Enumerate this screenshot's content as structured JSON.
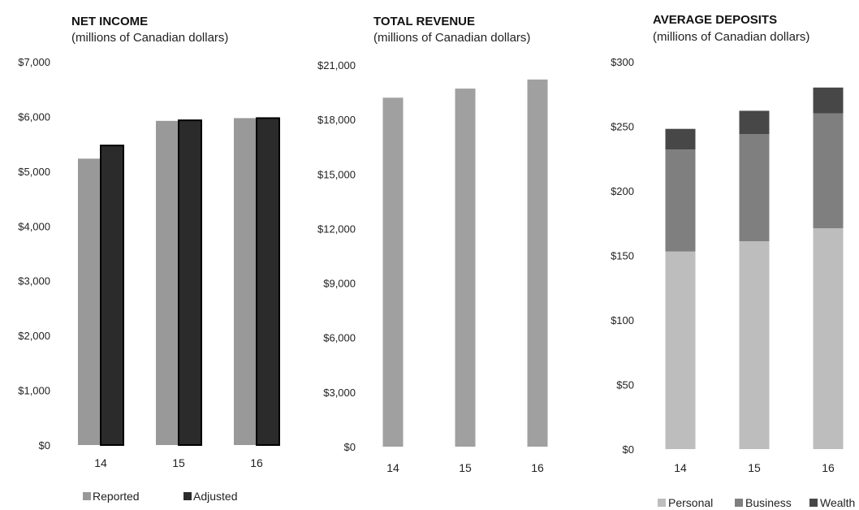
{
  "chart_data": [
    {
      "type": "bar",
      "title": "NET INCOME",
      "subtitle": "(millions of Canadian dollars)",
      "categories": [
        "14",
        "15",
        "16"
      ],
      "series": [
        {
          "name": "Reported",
          "values": [
            5230,
            5920,
            5970
          ],
          "color": "#999999"
        },
        {
          "name": "Adjusted",
          "values": [
            5470,
            5930,
            5970
          ],
          "color": "#2b2b2b"
        }
      ],
      "ylim": [
        0,
        7000
      ],
      "yticks": [
        0,
        1000,
        2000,
        3000,
        4000,
        5000,
        6000,
        7000
      ],
      "ytick_labels": [
        "$0",
        "$1,000",
        "$2,000",
        "$3,000",
        "$4,000",
        "$5,000",
        "$6,000",
        "$7,000"
      ],
      "grid": false,
      "legend": "bottom"
    },
    {
      "type": "bar",
      "title": "TOTAL REVENUE",
      "subtitle": "(millions of Canadian dollars)",
      "categories": [
        "14",
        "15",
        "16"
      ],
      "series": [
        {
          "name": "",
          "values": [
            19200,
            19700,
            20200
          ],
          "color": "#a0a0a0"
        }
      ],
      "ylim": [
        0,
        21000
      ],
      "yticks": [
        0,
        3000,
        6000,
        9000,
        12000,
        15000,
        18000,
        21000
      ],
      "ytick_labels": [
        "$0",
        "$3,000",
        "$6,000",
        "$9,000",
        "$12,000",
        "$15,000",
        "$18,000",
        "$21,000"
      ],
      "grid": false
    },
    {
      "type": "bar",
      "stacked": true,
      "title": "AVERAGE DEPOSITS",
      "subtitle": "(millions of Canadian dollars)",
      "categories": [
        "14",
        "15",
        "16"
      ],
      "series": [
        {
          "name": "Personal",
          "values": [
            153,
            161,
            171
          ],
          "color": "#bdbdbd"
        },
        {
          "name": "Business",
          "values": [
            79,
            83,
            89
          ],
          "color": "#7f7f7f"
        },
        {
          "name": "Wealth",
          "values": [
            16,
            18,
            20
          ],
          "color": "#474747"
        }
      ],
      "ylim": [
        0,
        300
      ],
      "yticks": [
        0,
        50,
        100,
        150,
        200,
        250,
        300
      ],
      "ytick_labels": [
        "$0",
        "$50",
        "$100",
        "$150",
        "$200",
        "$250",
        "$300"
      ],
      "grid": false,
      "legend": "bottom"
    }
  ]
}
